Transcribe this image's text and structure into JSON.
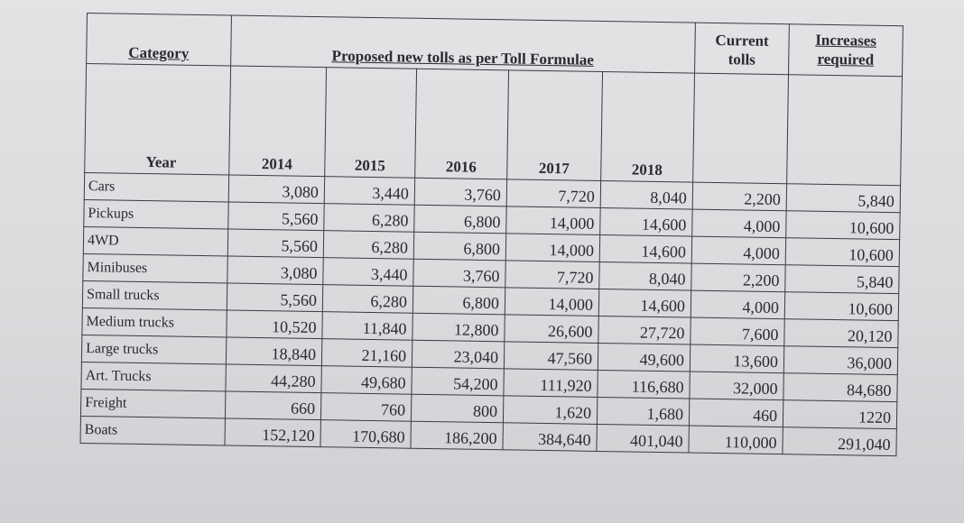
{
  "table": {
    "headers": {
      "category": "Category",
      "proposed": "Proposed new tolls as per Toll Formulae",
      "current": [
        "Current",
        "tolls"
      ],
      "increases": [
        "Increases",
        "required"
      ]
    },
    "year_label": "Year",
    "years": [
      "2014",
      "2015",
      "2016",
      "2017",
      "2018"
    ],
    "rows": [
      {
        "category": "Cars",
        "values": [
          "3,080",
          "3,440",
          "3,760",
          "7,720",
          "8,040"
        ],
        "current": "2,200",
        "increase": "5,840"
      },
      {
        "category": "Pickups",
        "values": [
          "5,560",
          "6,280",
          "6,800",
          "14,000",
          "14,600"
        ],
        "current": "4,000",
        "increase": "10,600"
      },
      {
        "category": "4WD",
        "values": [
          "5,560",
          "6,280",
          "6,800",
          "14,000",
          "14,600"
        ],
        "current": "4,000",
        "increase": "10,600"
      },
      {
        "category": "Minibuses",
        "values": [
          "3,080",
          "3,440",
          "3,760",
          "7,720",
          "8,040"
        ],
        "current": "2,200",
        "increase": "5,840"
      },
      {
        "category": "Small trucks",
        "values": [
          "5,560",
          "6,280",
          "6,800",
          "14,000",
          "14,600"
        ],
        "current": "4,000",
        "increase": "10,600"
      },
      {
        "category": "Medium trucks",
        "values": [
          "10,520",
          "11,840",
          "12,800",
          "26,600",
          "27,720"
        ],
        "current": "7,600",
        "increase": "20,120"
      },
      {
        "category": "Large trucks",
        "values": [
          "18,840",
          "21,160",
          "23,040",
          "47,560",
          "49,600"
        ],
        "current": "13,600",
        "increase": "36,000"
      },
      {
        "category": "Art. Trucks",
        "values": [
          "44,280",
          "49,680",
          "54,200",
          "111,920",
          "116,680"
        ],
        "current": "32,000",
        "increase": "84,680"
      },
      {
        "category": "Freight",
        "values": [
          "660",
          "760",
          "800",
          "1,620",
          "1,680"
        ],
        "current": "460",
        "increase": "1220"
      },
      {
        "category": "Boats",
        "values": [
          "152,120",
          "170,680",
          "186,200",
          "384,640",
          "401,040"
        ],
        "current": "110,000",
        "increase": "291,040"
      }
    ]
  }
}
